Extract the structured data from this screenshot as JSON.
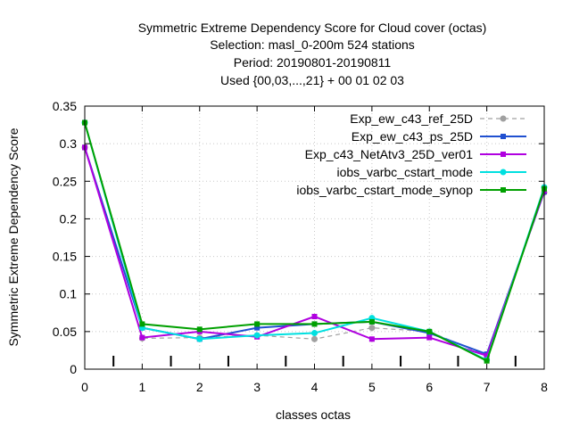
{
  "chart_data": {
    "type": "line",
    "title_lines": [
      "Symmetric Extreme Dependency Score  for Cloud cover (octas)",
      "Selection: masl_0-200m    524 stations",
      "Period: 20190801-20190811",
      "Used {00,03,...,21} + 00 01 02 03"
    ],
    "xlabel": "classes octas",
    "ylabel": "Symmetric Extreme Dependency Score",
    "xlim": [
      0,
      8
    ],
    "ylim": [
      0,
      0.35
    ],
    "xticks": [
      "0",
      "1",
      "2",
      "3",
      "4",
      "5",
      "6",
      "7",
      "8"
    ],
    "yticks": [
      "0",
      "0.05",
      "0.1",
      "0.15",
      "0.2",
      "0.25",
      "0.3",
      "0.35"
    ],
    "legend_position": "top-right",
    "x": [
      0,
      1,
      2,
      3,
      4,
      5,
      6,
      7,
      8
    ],
    "series": [
      {
        "name": "Exp_ew_c43_ref_25D",
        "color": "#a0a0a0",
        "dashed": true,
        "marker": "circle",
        "values": [
          0.295,
          0.041,
          0.042,
          0.045,
          0.04,
          0.055,
          0.05,
          0.018,
          0.235
        ]
      },
      {
        "name": "Exp_ew_c43_ps_25D",
        "color": "#2050d0",
        "dashed": false,
        "marker": "square",
        "values": [
          0.295,
          0.055,
          0.04,
          0.055,
          0.06,
          0.063,
          0.048,
          0.02,
          0.236
        ]
      },
      {
        "name": "Exp_c43_NetAtv3_25D_ver01",
        "color": "#b000e0",
        "dashed": false,
        "marker": "square",
        "values": [
          0.295,
          0.042,
          0.05,
          0.043,
          0.07,
          0.04,
          0.042,
          0.018,
          0.237
        ]
      },
      {
        "name": "iobs_varbc_cstart_mode",
        "color": "#00e0e0",
        "dashed": false,
        "marker": "circle",
        "values": [
          0.328,
          0.055,
          0.04,
          0.045,
          0.048,
          0.068,
          0.05,
          0.012,
          0.242
        ]
      },
      {
        "name": "iobs_varbc_cstart_mode_synop",
        "color": "#00a000",
        "dashed": false,
        "marker": "square",
        "values": [
          0.328,
          0.06,
          0.053,
          0.06,
          0.06,
          0.063,
          0.05,
          0.011,
          0.24
        ]
      }
    ],
    "class_boundaries": [
      0.5,
      1.5,
      2.5,
      3.5,
      4.5,
      5.5,
      6.5,
      7.5
    ]
  }
}
